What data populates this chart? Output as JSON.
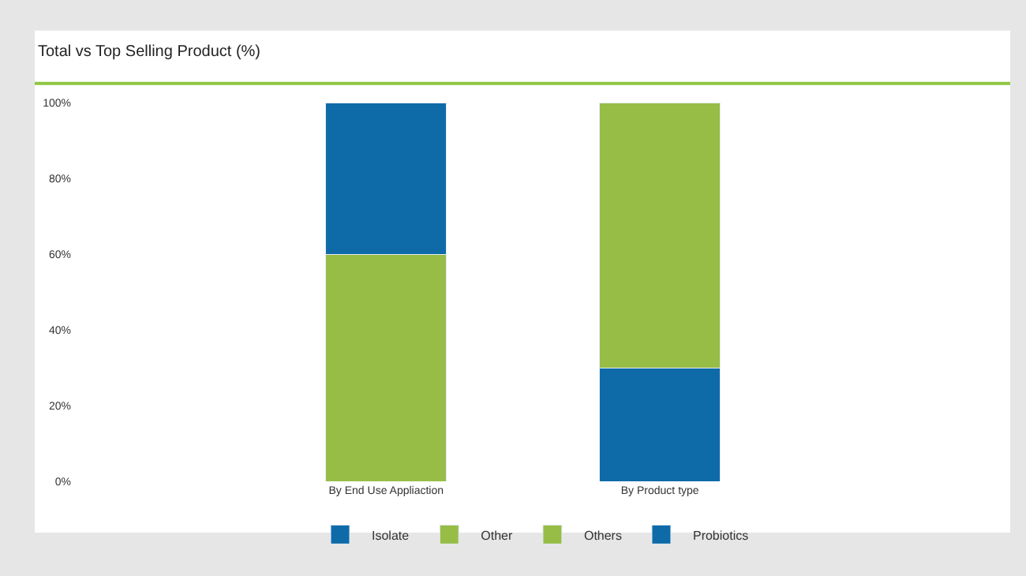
{
  "chart_data": {
    "type": "bar",
    "title": "Total vs Top Selling Product (%)",
    "categories": [
      "By End Use Appliaction",
      "By Product type"
    ],
    "stacked": true,
    "series": [
      {
        "name": "Other",
        "color": "#97bd47",
        "values": [
          60,
          null
        ]
      },
      {
        "name": "Probiotics",
        "color": "#0e6ba8",
        "values": [
          null,
          30
        ]
      },
      {
        "name": "Isolate",
        "color": "#0e6ba8",
        "values": [
          40,
          null
        ]
      },
      {
        "name": "Others",
        "color": "#97bd47",
        "values": [
          null,
          70
        ]
      }
    ],
    "ylim": [
      0,
      100
    ],
    "yticks": [
      {
        "value": 0,
        "label": "0%"
      },
      {
        "value": 20,
        "label": "20%"
      },
      {
        "value": 40,
        "label": "40%"
      },
      {
        "value": 60,
        "label": "60%"
      },
      {
        "value": 80,
        "label": "80%"
      },
      {
        "value": 100,
        "label": "100%"
      }
    ],
    "legend": "bottom"
  }
}
